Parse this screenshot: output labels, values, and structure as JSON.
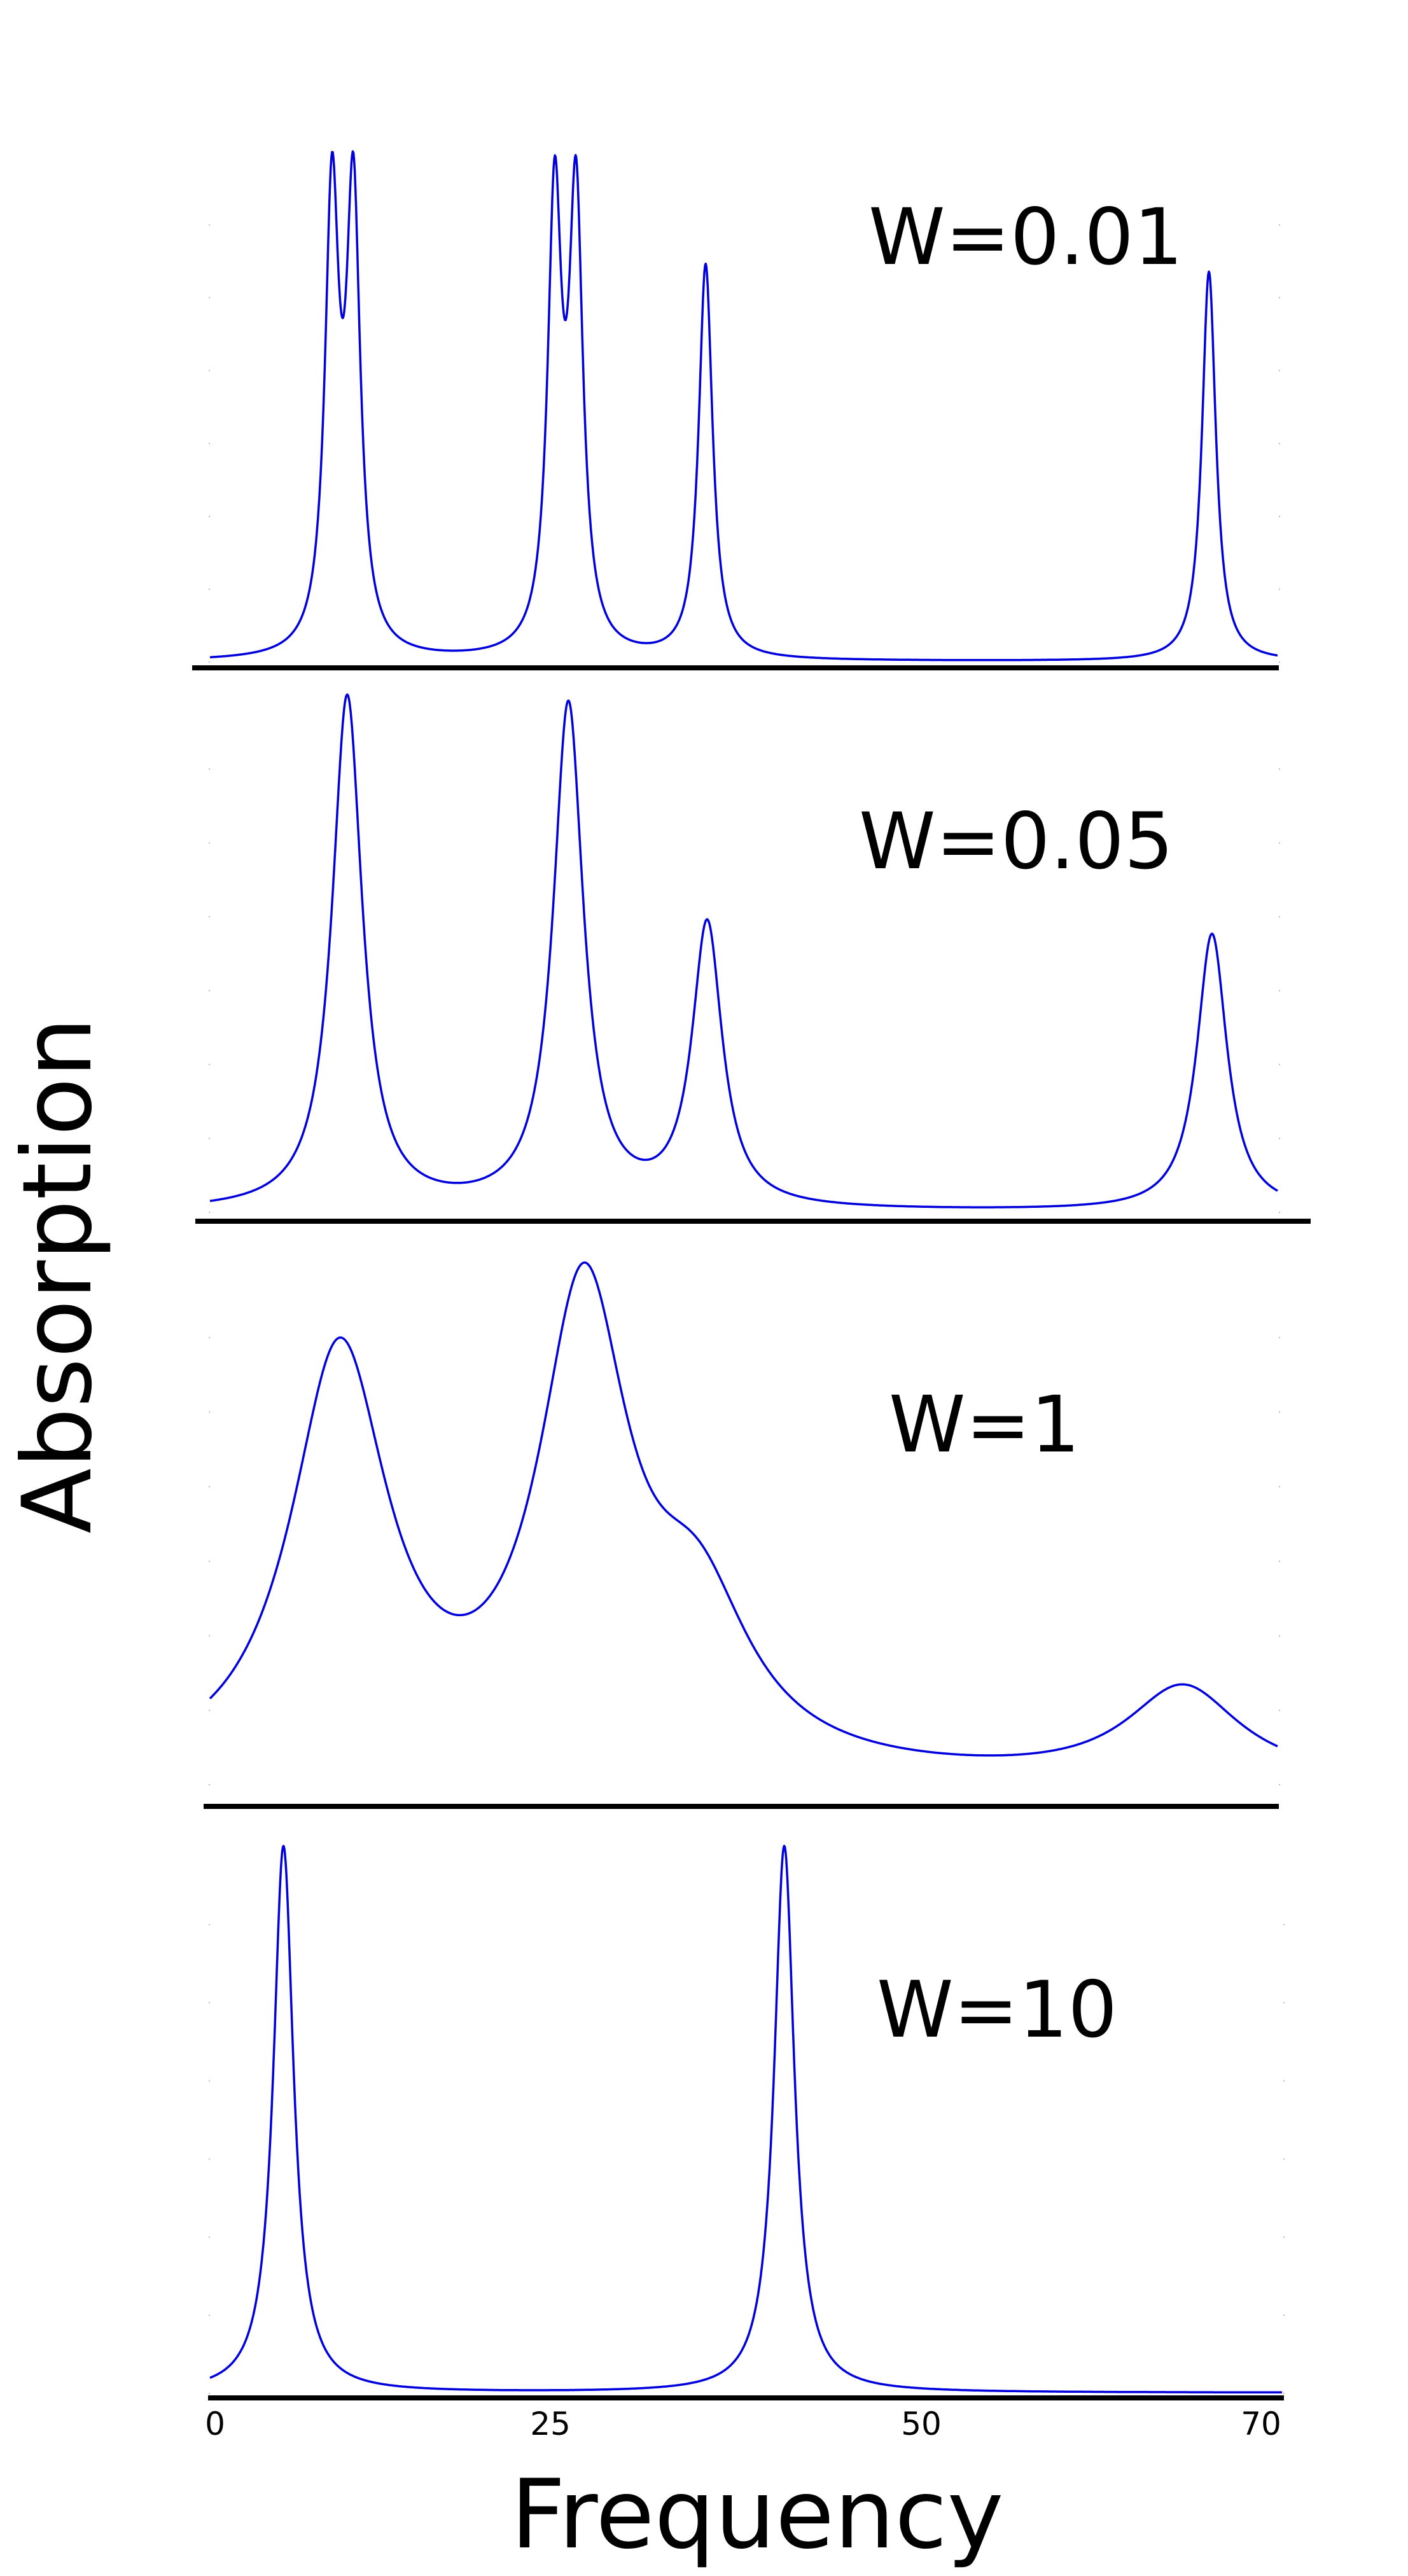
{
  "chart_data": {
    "type": "line",
    "xlabel": "Frequency",
    "ylabel": "Absorption",
    "xlim": [
      0,
      70
    ],
    "xticks": [
      0,
      25,
      50,
      70
    ],
    "line_color": "#0000dd",
    "panels": [
      {
        "label": "W=0.01",
        "peaks": [
          {
            "center": 8.0,
            "height": 1.0,
            "width": 0.55
          },
          {
            "center": 9.4,
            "height": 1.0,
            "width": 0.55
          },
          {
            "center": 22.6,
            "height": 0.99,
            "width": 0.55
          },
          {
            "center": 24.0,
            "height": 0.99,
            "width": 0.55
          },
          {
            "center": 32.5,
            "height": 0.88,
            "width": 0.55
          },
          {
            "center": 65.5,
            "height": 0.87,
            "width": 0.55
          }
        ]
      },
      {
        "label": "W=0.05",
        "peaks": [
          {
            "center": 9.0,
            "height": 1.0,
            "width": 1.2
          },
          {
            "center": 23.5,
            "height": 0.98,
            "width": 1.2
          },
          {
            "center": 32.6,
            "height": 0.55,
            "width": 1.2
          },
          {
            "center": 65.7,
            "height": 0.54,
            "width": 1.2
          }
        ]
      },
      {
        "label": "W=1",
        "peaks": [
          {
            "center": 8.5,
            "height": 0.78,
            "width": 3.9
          },
          {
            "center": 24.5,
            "height": 0.86,
            "width": 3.6
          },
          {
            "center": 32.0,
            "height": 0.27,
            "width": 4.2
          },
          {
            "center": 63.8,
            "height": 0.17,
            "width": 4.5
          }
        ]
      },
      {
        "label": "W=10",
        "peaks": [
          {
            "center": 4.8,
            "height": 1.0,
            "width": 0.8
          },
          {
            "center": 37.5,
            "height": 1.0,
            "width": 0.8
          }
        ]
      }
    ]
  }
}
